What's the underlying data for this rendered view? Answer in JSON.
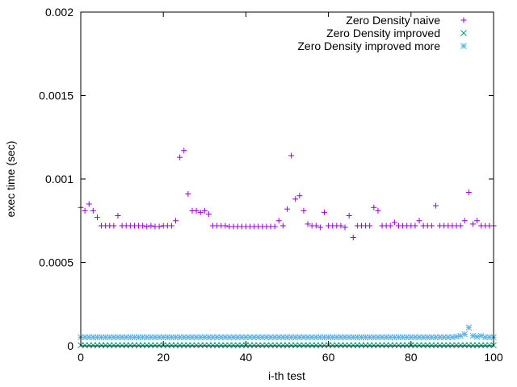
{
  "chart_data": {
    "type": "scatter",
    "title": "",
    "xlabel": "i-th test",
    "ylabel": "exec time (sec)",
    "xlim": [
      0,
      100
    ],
    "ylim": [
      0,
      0.002
    ],
    "xticks": [
      0,
      20,
      40,
      60,
      80,
      100
    ],
    "yticks": [
      0,
      0.0005,
      0.001,
      0.0015,
      0.002
    ],
    "ytick_labels": [
      "0",
      "0.0005",
      "0.001",
      "0.0015",
      "0.002"
    ],
    "grid": false,
    "legend_position": "top-right",
    "series": [
      {
        "name": "Zero Density naive",
        "marker": "plus",
        "color": "#9400d3",
        "values": [
          0.00083,
          0.00081,
          0.00085,
          0.00081,
          0.00077,
          0.00072,
          0.00072,
          0.00072,
          0.00072,
          0.00078,
          0.00072,
          0.00072,
          0.00072,
          0.00072,
          0.00072,
          0.00072,
          0.000715,
          0.00072,
          0.000715,
          0.000715,
          0.00072,
          0.00072,
          0.00072,
          0.00075,
          0.00113,
          0.00117,
          0.00091,
          0.00081,
          0.00081,
          0.0008,
          0.00081,
          0.00079,
          0.00072,
          0.00072,
          0.00072,
          0.00072,
          0.000715,
          0.000715,
          0.000715,
          0.000715,
          0.000715,
          0.000715,
          0.000715,
          0.000715,
          0.000715,
          0.000715,
          0.000715,
          0.000715,
          0.00075,
          0.00072,
          0.00082,
          0.00114,
          0.00088,
          0.0009,
          0.00081,
          0.00073,
          0.00072,
          0.00072,
          0.00071,
          0.0008,
          0.00072,
          0.00072,
          0.00072,
          0.00072,
          0.00071,
          0.00078,
          0.00065,
          0.00072,
          0.00072,
          0.00072,
          0.00072,
          0.00083,
          0.00081,
          0.00072,
          0.00072,
          0.00072,
          0.00074,
          0.00072,
          0.00072,
          0.00072,
          0.00072,
          0.00072,
          0.00075,
          0.00072,
          0.00072,
          0.00072,
          0.00084,
          0.00072,
          0.00072,
          0.00072,
          0.00072,
          0.00072,
          0.00072,
          0.00075,
          0.00092,
          0.00073,
          0.00075,
          0.00072,
          0.00072,
          0.00072,
          0.00072
        ]
      },
      {
        "name": "Zero Density improved",
        "marker": "cross",
        "color": "#009e73",
        "values": [
          4e-06,
          4e-06,
          4e-06,
          4e-06,
          4e-06,
          4e-06,
          4e-06,
          4e-06,
          4e-06,
          4e-06,
          4e-06,
          4e-06,
          4e-06,
          4e-06,
          4e-06,
          4e-06,
          4e-06,
          4e-06,
          4e-06,
          4e-06,
          4e-06,
          4e-06,
          4e-06,
          4e-06,
          4e-06,
          4e-06,
          4e-06,
          4e-06,
          4e-06,
          4e-06,
          4e-06,
          4e-06,
          4e-06,
          4e-06,
          4e-06,
          4e-06,
          4e-06,
          4e-06,
          4e-06,
          4e-06,
          4e-06,
          4e-06,
          4e-06,
          4e-06,
          4e-06,
          4e-06,
          4e-06,
          4e-06,
          4e-06,
          4e-06,
          4e-06,
          4e-06,
          4e-06,
          4e-06,
          4e-06,
          4e-06,
          4e-06,
          4e-06,
          4e-06,
          4e-06,
          4e-06,
          4e-06,
          4e-06,
          4e-06,
          4e-06,
          4e-06,
          4e-06,
          4e-06,
          4e-06,
          4e-06,
          4e-06,
          4e-06,
          4e-06,
          4e-06,
          4e-06,
          4e-06,
          4e-06,
          4e-06,
          4e-06,
          4e-06,
          4e-06,
          4e-06,
          4e-06,
          4e-06,
          4e-06,
          4e-06,
          4e-06,
          4e-06,
          4e-06,
          4e-06,
          4e-06,
          4e-06,
          4e-06,
          4e-06,
          4e-06,
          4e-06,
          4e-06,
          4e-06,
          4e-06,
          4e-06,
          4e-06
        ]
      },
      {
        "name": "Zero Density improved more",
        "marker": "star",
        "color": "#56b4e9",
        "values": [
          5.2e-05,
          5.2e-05,
          5.2e-05,
          5.2e-05,
          5.2e-05,
          5.2e-05,
          5.2e-05,
          5.2e-05,
          5.2e-05,
          5.2e-05,
          5.2e-05,
          5.2e-05,
          5.2e-05,
          5.2e-05,
          5.2e-05,
          5.2e-05,
          5.2e-05,
          5.2e-05,
          5.2e-05,
          5.2e-05,
          5.2e-05,
          5.2e-05,
          5.2e-05,
          5.2e-05,
          5.2e-05,
          5.2e-05,
          5.2e-05,
          5.2e-05,
          5.2e-05,
          5.2e-05,
          5.2e-05,
          5.2e-05,
          5.2e-05,
          5.2e-05,
          5.2e-05,
          5.2e-05,
          5.2e-05,
          5.2e-05,
          5.2e-05,
          5.2e-05,
          5.2e-05,
          5.2e-05,
          5.2e-05,
          5.2e-05,
          5.2e-05,
          5.2e-05,
          5.2e-05,
          5.2e-05,
          5.2e-05,
          5.2e-05,
          5.2e-05,
          5.2e-05,
          5.2e-05,
          5.2e-05,
          5.2e-05,
          5.2e-05,
          5.2e-05,
          5.2e-05,
          5.2e-05,
          5.2e-05,
          5.2e-05,
          5.2e-05,
          5.2e-05,
          5.2e-05,
          5.2e-05,
          5.2e-05,
          5.2e-05,
          5.2e-05,
          5.2e-05,
          5.2e-05,
          5.2e-05,
          5.2e-05,
          5.2e-05,
          5.2e-05,
          5.2e-05,
          5.2e-05,
          5.2e-05,
          5.2e-05,
          5.2e-05,
          5.2e-05,
          5.2e-05,
          5.2e-05,
          5.2e-05,
          5.2e-05,
          5.2e-05,
          5.2e-05,
          5.2e-05,
          5.2e-05,
          5.2e-05,
          5.2e-05,
          5.2e-05,
          5.5e-05,
          6e-05,
          7e-05,
          0.00011,
          6e-05,
          5.5e-05,
          6e-05,
          5.2e-05,
          5.2e-05,
          5.2e-05
        ]
      }
    ]
  }
}
